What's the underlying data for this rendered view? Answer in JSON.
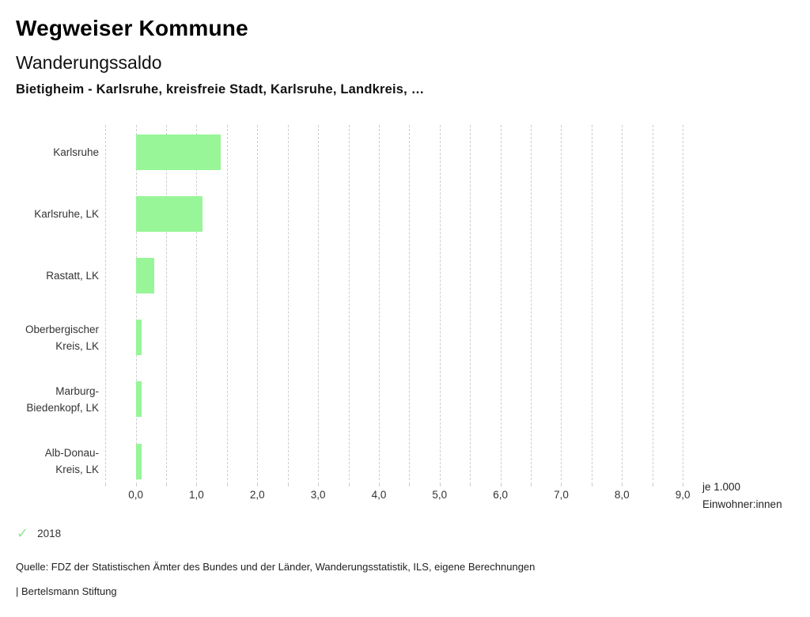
{
  "header": {
    "title": "Wegweiser Kommune",
    "subtitle": "Wanderungssaldo",
    "selection": "Bietigheim - Karlsruhe, kreisfreie Stadt, Karlsruhe, Landkreis, …"
  },
  "chart_data": {
    "type": "bar",
    "orientation": "horizontal",
    "title": "Wanderungssaldo",
    "series_name": "2018",
    "categories": [
      "Karlsruhe",
      "Karlsruhe, LK",
      "Rastatt, LK",
      "Oberbergischer Kreis, LK",
      "Marburg-Biedenkopf, LK",
      "Alb-Donau-Kreis, LK"
    ],
    "category_lines": [
      [
        "Karlsruhe"
      ],
      [
        "Karlsruhe, LK"
      ],
      [
        "Rastatt, LK"
      ],
      [
        "Oberbergischer",
        "Kreis, LK"
      ],
      [
        "Marburg-",
        "Biedenkopf, LK"
      ],
      [
        "Alb-Donau-",
        "Kreis, LK"
      ]
    ],
    "values": [
      1.4,
      1.1,
      0.3,
      0.1,
      0.1,
      0.1
    ],
    "xlim": [
      -0.5,
      9.0
    ],
    "grid_step": 0.5,
    "label_step": 1.0,
    "xticklabels": [
      "0,0",
      "1,0",
      "2,0",
      "3,0",
      "4,0",
      "5,0",
      "6,0",
      "7,0",
      "8,0",
      "9,0"
    ],
    "unit_lines": [
      "je 1.000",
      "Einwohner:innen"
    ],
    "unit": "je 1.000 Einwohner:innen",
    "bar_color": "#98f598",
    "grid_color": "#cccccc",
    "grid": true,
    "legend_position": "bottom-left"
  },
  "legend": {
    "check_icon": "✓",
    "year": "2018",
    "check_color": "#8ee88e"
  },
  "footer": {
    "source": "Quelle: FDZ der Statistischen Ämter des Bundes und der Länder, Wanderungsstatistik, ILS, eigene Berechnungen",
    "brand": "| Bertelsmann Stiftung"
  }
}
